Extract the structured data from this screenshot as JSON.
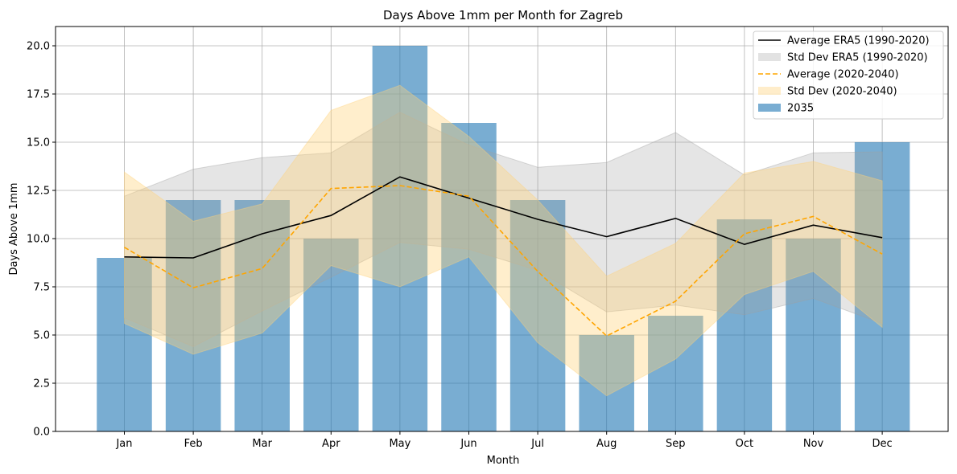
{
  "chart_data": {
    "type": "bar",
    "title": "Days Above 1mm per Month for Zagreb",
    "xlabel": "Month",
    "ylabel": "Days Above 1mm",
    "categories": [
      "Jan",
      "Feb",
      "Mar",
      "Apr",
      "May",
      "Jun",
      "Jul",
      "Aug",
      "Sep",
      "Oct",
      "Nov",
      "Dec"
    ],
    "ylim": [
      0,
      21
    ],
    "yticks": [
      "0.0",
      "2.5",
      "5.0",
      "7.5",
      "10.0",
      "12.5",
      "15.0",
      "17.5",
      "20.0"
    ],
    "grid": true,
    "legend_position": "top-right",
    "bars": {
      "name": "2035",
      "color": "#1f77b4",
      "values": [
        9,
        12,
        12,
        10,
        20,
        16,
        12,
        5,
        6,
        11,
        10,
        15
      ]
    },
    "series": [
      {
        "name": "Average ERA5 (1990-2020)",
        "color": "#000000",
        "style": "solid",
        "values": [
          9.05,
          9.0,
          10.25,
          11.2,
          13.2,
          12.1,
          11.0,
          10.1,
          11.05,
          9.7,
          10.7,
          10.05
        ]
      },
      {
        "name": "Average (2020-2040)",
        "color": "#ffa500",
        "style": "dashed",
        "values": [
          9.55,
          7.45,
          8.45,
          12.6,
          12.75,
          12.2,
          8.3,
          4.95,
          6.75,
          10.25,
          11.15,
          9.2
        ]
      }
    ],
    "bands": [
      {
        "name": "Std Dev ERA5 (1990-2020)",
        "color": "#a0a0a0",
        "lower": [
          5.9,
          4.4,
          6.25,
          8.0,
          9.8,
          9.45,
          8.35,
          6.2,
          6.55,
          6.05,
          6.9,
          5.6
        ],
        "upper": [
          12.2,
          13.6,
          14.2,
          14.45,
          16.55,
          14.85,
          13.7,
          13.95,
          15.5,
          13.3,
          14.45,
          14.5
        ]
      },
      {
        "name": "Std Dev (2020-2040)",
        "color": "#ffd27a",
        "lower": [
          5.6,
          4.0,
          5.1,
          8.6,
          7.5,
          9.05,
          4.6,
          1.85,
          3.75,
          7.1,
          8.3,
          5.4
        ],
        "upper": [
          13.45,
          10.9,
          11.8,
          16.65,
          17.95,
          15.3,
          12.0,
          8.05,
          9.75,
          13.4,
          14.0,
          13.0
        ]
      }
    ],
    "legend": [
      {
        "label": "Average ERA5 (1990-2020)",
        "kind": "line",
        "color": "#000000",
        "dash": false
      },
      {
        "label": "Std Dev ERA5 (1990-2020)",
        "kind": "band",
        "color": "#a0a0a0"
      },
      {
        "label": "Average (2020-2040)",
        "kind": "line",
        "color": "#ffa500",
        "dash": true
      },
      {
        "label": "Std Dev (2020-2040)",
        "kind": "band",
        "color": "#ffd27a"
      },
      {
        "label": "2035",
        "kind": "bar",
        "color": "#1f77b4"
      }
    ]
  }
}
